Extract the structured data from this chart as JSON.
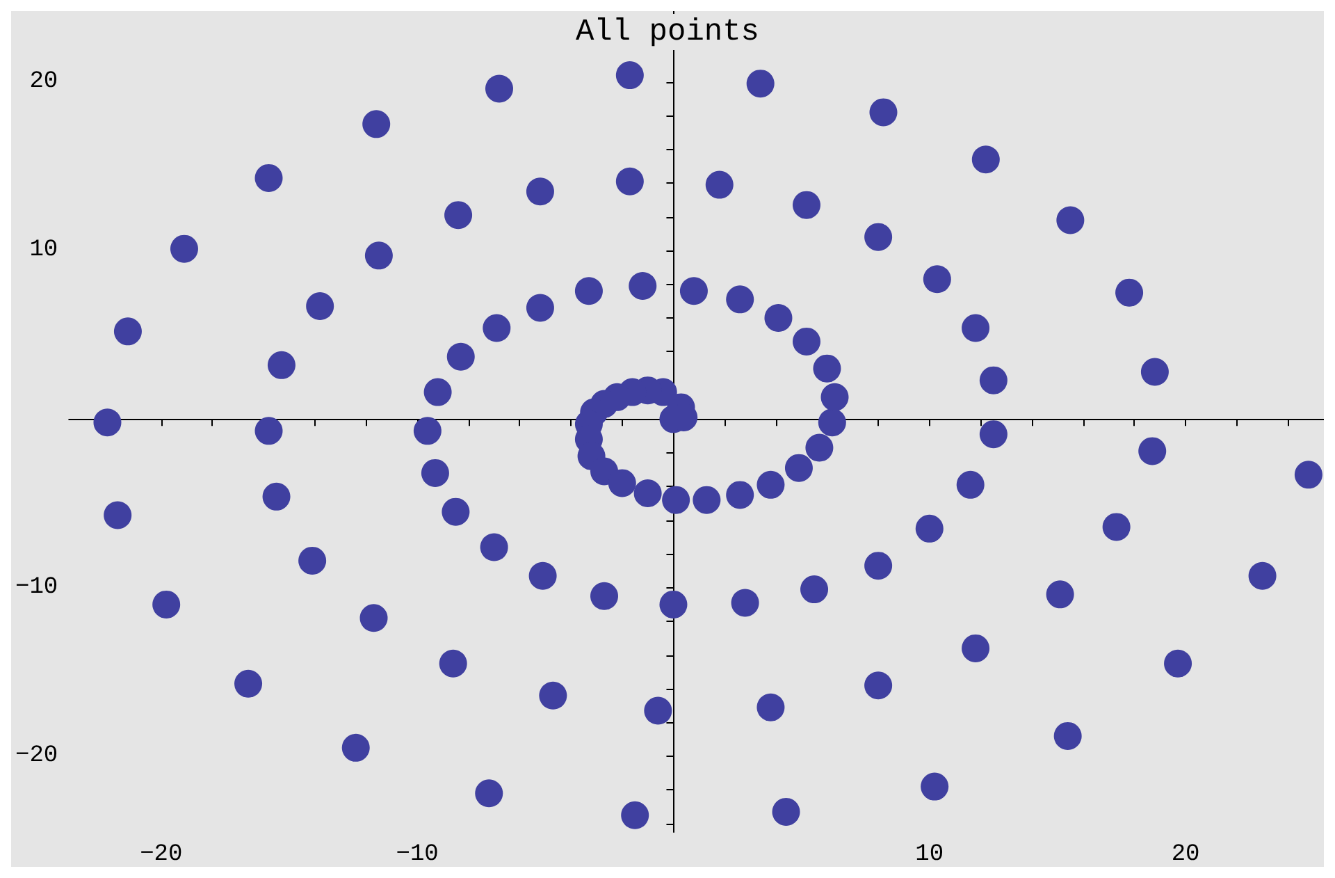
{
  "chart_data": {
    "type": "scatter",
    "title": "All points",
    "color": "#4040a0",
    "marker": "circle",
    "xlim": [
      -23.6,
      25.4
    ],
    "ylim": [
      -24.5,
      24.2
    ],
    "xticks": [
      -20,
      -10,
      10,
      20,
      {
        "value": -22,
        "label": null
      },
      {
        "value": -18,
        "label": null
      },
      {
        "value": -16,
        "label": null
      },
      {
        "value": -14,
        "label": null
      },
      {
        "value": -12,
        "label": null
      },
      {
        "value": -8,
        "label": null
      },
      {
        "value": -6,
        "label": null
      },
      {
        "value": -4,
        "label": null
      },
      {
        "value": -2,
        "label": null
      },
      {
        "value": 2,
        "label": null
      },
      {
        "value": 4,
        "label": null
      },
      {
        "value": 6,
        "label": null
      },
      {
        "value": 8,
        "label": null
      },
      {
        "value": 12,
        "label": null
      },
      {
        "value": 14,
        "label": null
      },
      {
        "value": 16,
        "label": null
      },
      {
        "value": 18,
        "label": null
      },
      {
        "value": 22,
        "label": null
      },
      {
        "value": 24,
        "label": null
      }
    ],
    "yticks": [
      -20,
      -10,
      10,
      20,
      {
        "value": -24,
        "label": null
      },
      {
        "value": -22,
        "label": null
      },
      {
        "value": -18,
        "label": null
      },
      {
        "value": -16,
        "label": null
      },
      {
        "value": -14,
        "label": null
      },
      {
        "value": -12,
        "label": null
      },
      {
        "value": -8,
        "label": null
      },
      {
        "value": -6,
        "label": null
      },
      {
        "value": -4,
        "label": null
      },
      {
        "value": -2,
        "label": null
      },
      {
        "value": 2,
        "label": null
      },
      {
        "value": 4,
        "label": null
      },
      {
        "value": 6,
        "label": null
      },
      {
        "value": 8,
        "label": null
      },
      {
        "value": 12,
        "label": null
      },
      {
        "value": 14,
        "label": null
      },
      {
        "value": 16,
        "label": null
      },
      {
        "value": 18,
        "label": null
      },
      {
        "value": 22,
        "label": null
      },
      {
        "value": 24,
        "label": null
      }
    ],
    "x": [
      0,
      0.3,
      0.4,
      -0.4,
      -1,
      -1.6,
      -2.2,
      -2.7,
      -3.1,
      -3.3,
      -3.3,
      -3.2,
      -2.7,
      -2,
      -1,
      0.1,
      1.3,
      2.6,
      3.8,
      4.9,
      5.7,
      6.2,
      6.3,
      6,
      5.2,
      4.1,
      2.6,
      0.8,
      -1.2,
      -3.3,
      -5.2,
      -6.9,
      -8.3,
      -9.2,
      -9.6,
      -9.3,
      -8.5,
      -7,
      -5.1,
      -2.7,
      0,
      2.8,
      5.5,
      8,
      10,
      11.6,
      12.5,
      12.5,
      11.8,
      10.3,
      8,
      5.2,
      1.8,
      -1.7,
      -5.2,
      -8.4,
      -11.5,
      -13.8,
      -15.3,
      -15.8,
      -15.5,
      -14.1,
      -11.7,
      -8.6,
      -4.7,
      -0.6,
      3.8,
      8,
      11.8,
      15.1,
      17.3,
      18.7,
      18.8,
      17.8,
      15.5,
      12.2,
      8.2,
      3.4,
      -1.7,
      -6.8,
      -11.6,
      -15.8,
      -19.1,
      -21.3,
      -22.1,
      -21.7,
      -19.8,
      -16.6,
      -12.4,
      -7.2,
      -1.5,
      4.4,
      10.2,
      15.4,
      19.7,
      23,
      24.8
    ],
    "values": [
      0,
      0.7,
      0.1,
      1.6,
      1.7,
      1.6,
      1.3,
      0.9,
      0.4,
      -0.3,
      -1.2,
      -2.2,
      -3.1,
      -3.8,
      -4.4,
      -4.8,
      -4.8,
      -4.5,
      -3.9,
      -2.9,
      -1.7,
      -0.2,
      1.3,
      3,
      4.6,
      6,
      7.1,
      7.6,
      7.9,
      7.6,
      6.6,
      5.4,
      3.7,
      1.6,
      -0.7,
      -3.2,
      -5.5,
      -7.6,
      -9.3,
      -10.5,
      -11,
      -10.9,
      -10.1,
      -8.7,
      -6.5,
      -3.9,
      -0.9,
      2.3,
      5.4,
      8.3,
      10.8,
      12.7,
      13.9,
      14.1,
      13.5,
      12.1,
      9.7,
      6.7,
      3.2,
      -0.7,
      -4.6,
      -8.4,
      -11.8,
      -14.5,
      -16.4,
      -17.3,
      -17.1,
      -15.8,
      -13.6,
      -10.4,
      -6.4,
      -1.9,
      2.8,
      7.5,
      11.8,
      15.4,
      18.2,
      19.9,
      20.4,
      19.6,
      17.5,
      14.3,
      10.1,
      5.2,
      -0.2,
      -5.7,
      -11,
      -15.7,
      -19.5,
      -22.2,
      -23.5,
      -23.3,
      -21.8,
      -18.8,
      -14.5,
      -9.3,
      -3.3
    ]
  }
}
